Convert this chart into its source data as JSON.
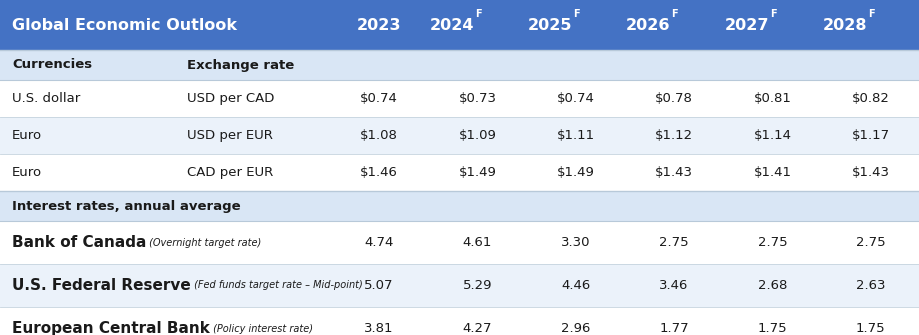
{
  "title": "Global Economic Outlook",
  "header_years": [
    "2023",
    "2024",
    "2025",
    "2026",
    "2027",
    "2028"
  ],
  "header_bg": "#4472C4",
  "header_text_color": "#FFFFFF",
  "subheader1_text": "Currencies",
  "subheader1_col2": "Exchange rate",
  "subheader2_text": "Interest rates, annual average",
  "subheader_bg": "#D9E6F5",
  "row_bg_alt": "#EBF2FA",
  "row_bg_white": "#FFFFFF",
  "rows_currency": [
    {
      "col1": "U.S. dollar",
      "col2": "USD per CAD",
      "values": [
        "$0.74",
        "$0.73",
        "$0.74",
        "$0.78",
        "$0.81",
        "$0.82"
      ],
      "bg": "#FFFFFF"
    },
    {
      "col1": "Euro",
      "col2": "USD per EUR",
      "values": [
        "$1.08",
        "$1.09",
        "$1.11",
        "$1.12",
        "$1.14",
        "$1.17"
      ],
      "bg": "#EBF2FA"
    },
    {
      "col1": "Euro",
      "col2": "CAD per EUR",
      "values": [
        "$1.46",
        "$1.49",
        "$1.49",
        "$1.43",
        "$1.41",
        "$1.43"
      ],
      "bg": "#FFFFFF"
    }
  ],
  "rows_interest": [
    {
      "col1_bold": "Bank of Canada",
      "col1_italic": " (Overnight target rate)",
      "values": [
        "4.74",
        "4.61",
        "3.30",
        "2.75",
        "2.75",
        "2.75"
      ],
      "bg": "#FFFFFF"
    },
    {
      "col1_bold": "U.S. Federal Reserve",
      "col1_italic": " (Fed funds target rate – Mid-point)",
      "values": [
        "5.07",
        "5.29",
        "4.46",
        "3.46",
        "2.68",
        "2.63"
      ],
      "bg": "#EBF2FA"
    },
    {
      "col1_bold": "European Central Bank",
      "col1_italic": " (Policy interest rate)",
      "values": [
        "3.81",
        "4.27",
        "2.96",
        "1.77",
        "1.75",
        "1.75"
      ],
      "bg": "#FFFFFF"
    }
  ],
  "figsize": [
    9.2,
    3.35
  ],
  "dpi": 100
}
